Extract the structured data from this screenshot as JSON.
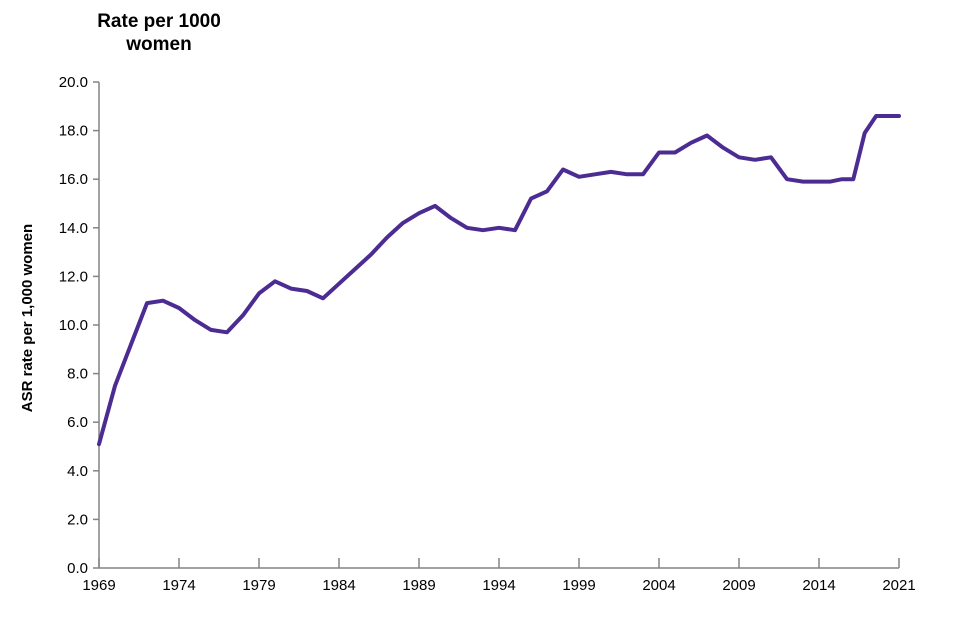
{
  "chart_data": {
    "type": "line",
    "title_lines": [
      "Rate per 1000",
      "women"
    ],
    "ylabel": "ASR rate per 1,000 women",
    "xlabel": "",
    "ylim": [
      0,
      20
    ],
    "y_tick_step": 2,
    "y_tick_labels": [
      "0.0",
      "2.0",
      "4.0",
      "6.0",
      "8.0",
      "10.0",
      "12.0",
      "14.0",
      "16.0",
      "18.0",
      "20.0"
    ],
    "x_tick_labels": [
      "1969",
      "1974",
      "1979",
      "1984",
      "1989",
      "1994",
      "1999",
      "2004",
      "2009",
      "2014",
      "2021"
    ],
    "x_tick_years": [
      1969,
      1974,
      1979,
      1984,
      1989,
      1994,
      1999,
      2004,
      2009,
      2014,
      2021
    ],
    "grid": false,
    "legend": false,
    "line_color": "#4C2C92",
    "axis_color": "#848484",
    "series": [
      {
        "name": "ASR rate per 1,000 women",
        "years": [
          1969,
          1970,
          1971,
          1972,
          1973,
          1974,
          1975,
          1976,
          1977,
          1978,
          1979,
          1980,
          1981,
          1982,
          1983,
          1984,
          1985,
          1986,
          1987,
          1988,
          1989,
          1990,
          1991,
          1992,
          1993,
          1994,
          1995,
          1996,
          1997,
          1998,
          1999,
          2000,
          2001,
          2002,
          2003,
          2004,
          2005,
          2006,
          2007,
          2008,
          2009,
          2010,
          2011,
          2012,
          2013,
          2014,
          2015,
          2016,
          2017,
          2018,
          2019,
          2020,
          2021
        ],
        "values": [
          5.1,
          7.5,
          9.2,
          10.9,
          11.0,
          10.7,
          10.2,
          9.8,
          9.7,
          10.4,
          11.3,
          11.8,
          11.5,
          11.4,
          11.1,
          11.7,
          12.3,
          12.9,
          13.6,
          14.2,
          14.6,
          14.9,
          14.4,
          14.0,
          13.9,
          14.0,
          13.9,
          15.2,
          15.5,
          16.4,
          16.1,
          16.2,
          16.3,
          16.2,
          16.2,
          17.1,
          17.1,
          17.5,
          17.8,
          17.3,
          16.9,
          16.8,
          16.9,
          16.0,
          15.9,
          15.9,
          15.9,
          16.0,
          16.0,
          17.9,
          18.6,
          18.6,
          18.6
        ]
      }
    ]
  }
}
